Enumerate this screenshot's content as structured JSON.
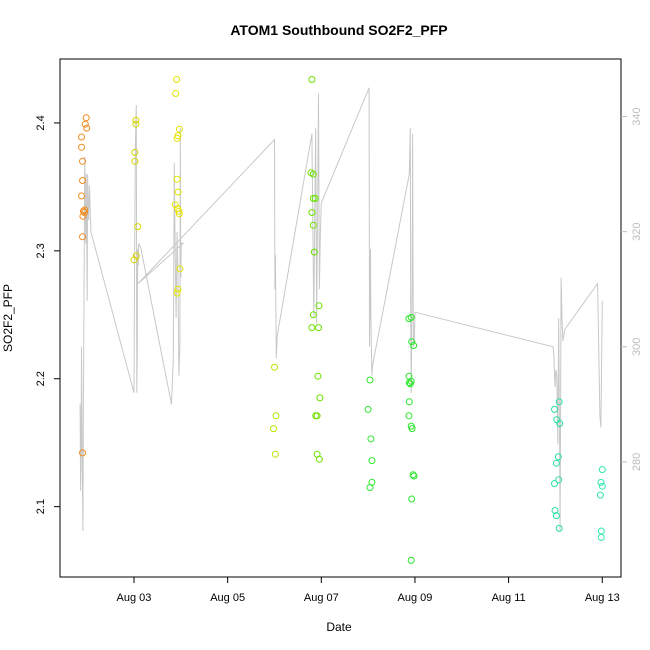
{
  "chart_data": {
    "type": "scatter",
    "title": "ATOM1 Southbound SO2F2_PFP",
    "xlabel": "Date",
    "ylabel": "SO2F2_PFP",
    "x_ticks": [
      "Aug 03",
      "Aug 05",
      "Aug 07",
      "Aug 09",
      "Aug 11",
      "Aug 13"
    ],
    "x_tick_days": [
      3,
      5,
      7,
      9,
      11,
      13
    ],
    "xlim": [
      1.42,
      13.4
    ],
    "y_ticks": [
      2.1,
      2.2,
      2.3,
      2.4
    ],
    "ylim": [
      2.045,
      2.45
    ],
    "y2_ticks": [
      280,
      300,
      320,
      340
    ],
    "y2lim": [
      260,
      350
    ],
    "grid": false,
    "series": [
      {
        "marker": "open-circle",
        "points": [
          [
            1.9,
            2.142,
            "#f28c1e"
          ],
          [
            1.9,
            2.311,
            "#f28c1e"
          ],
          [
            1.91,
            2.327,
            "#f28c1e"
          ],
          [
            1.92,
            2.331,
            "#f28c1e"
          ],
          [
            1.94,
            2.33,
            "#f28c1e"
          ],
          [
            1.95,
            2.332,
            "#f28c1e"
          ],
          [
            1.88,
            2.343,
            "#f28c1e"
          ],
          [
            1.9,
            2.355,
            "#f28c1e"
          ],
          [
            1.9,
            2.37,
            "#f28c1e"
          ],
          [
            1.88,
            2.381,
            "#f28c1e"
          ],
          [
            1.88,
            2.389,
            "#f28c1e"
          ],
          [
            1.96,
            2.399,
            "#f28c1e"
          ],
          [
            1.98,
            2.404,
            "#f28c1e"
          ],
          [
            1.99,
            2.396,
            "#f28c1e"
          ],
          [
            3.0,
            2.293,
            "#d6d600"
          ],
          [
            3.05,
            2.296,
            "#d6d600"
          ],
          [
            3.08,
            2.319,
            "#d6d600"
          ],
          [
            3.02,
            2.37,
            "#d6d600"
          ],
          [
            3.02,
            2.377,
            "#d6d600"
          ],
          [
            3.04,
            2.399,
            "#d6d600"
          ],
          [
            3.04,
            2.402,
            "#d6d600"
          ],
          [
            3.89,
            2.423,
            "#e4e400"
          ],
          [
            3.91,
            2.434,
            "#e4e400"
          ],
          [
            3.88,
            2.336,
            "#e4e400"
          ],
          [
            3.92,
            2.356,
            "#e4e400"
          ],
          [
            3.94,
            2.346,
            "#e4e400"
          ],
          [
            3.93,
            2.333,
            "#e4e400"
          ],
          [
            3.96,
            2.331,
            "#e4e400"
          ],
          [
            3.97,
            2.329,
            "#e4e400"
          ],
          [
            3.92,
            2.388,
            "#e4e400"
          ],
          [
            3.94,
            2.39,
            "#e4e400"
          ],
          [
            3.97,
            2.395,
            "#e4e400"
          ],
          [
            3.92,
            2.267,
            "#e4e400"
          ],
          [
            3.94,
            2.27,
            "#e4e400"
          ],
          [
            3.98,
            2.286,
            "#e4e400"
          ],
          [
            6.0,
            2.209,
            "#b4e600"
          ],
          [
            6.03,
            2.171,
            "#b4e600"
          ],
          [
            5.98,
            2.161,
            "#b4e600"
          ],
          [
            6.02,
            2.141,
            "#b4e600"
          ],
          [
            6.8,
            2.434,
            "#6be000"
          ],
          [
            6.78,
            2.361,
            "#6be000"
          ],
          [
            6.83,
            2.36,
            "#6be000"
          ],
          [
            6.8,
            2.33,
            "#6be000"
          ],
          [
            6.83,
            2.341,
            "#6be000"
          ],
          [
            6.87,
            2.341,
            "#6be000"
          ],
          [
            6.83,
            2.32,
            "#6be000"
          ],
          [
            6.85,
            2.299,
            "#6be000"
          ],
          [
            6.8,
            2.24,
            "#6be000"
          ],
          [
            6.83,
            2.25,
            "#6be000"
          ],
          [
            6.94,
            2.24,
            "#6be000"
          ],
          [
            6.95,
            2.257,
            "#6be000"
          ],
          [
            6.93,
            2.202,
            "#6be000"
          ],
          [
            6.88,
            2.171,
            "#6be000"
          ],
          [
            6.91,
            2.171,
            "#6be000"
          ],
          [
            6.97,
            2.185,
            "#6be000"
          ],
          [
            6.91,
            2.141,
            "#6be000"
          ],
          [
            6.96,
            2.137,
            "#6be000"
          ],
          [
            8.04,
            2.199,
            "#32e632"
          ],
          [
            8.0,
            2.176,
            "#32e632"
          ],
          [
            8.06,
            2.153,
            "#32e632"
          ],
          [
            8.08,
            2.136,
            "#32e632"
          ],
          [
            8.08,
            2.119,
            "#32e632"
          ],
          [
            8.04,
            2.115,
            "#32e632"
          ],
          [
            8.87,
            2.247,
            "#28e628"
          ],
          [
            8.92,
            2.248,
            "#28e628"
          ],
          [
            8.93,
            2.229,
            "#28e628"
          ],
          [
            8.97,
            2.226,
            "#28e628"
          ],
          [
            8.87,
            2.202,
            "#28e628"
          ],
          [
            8.88,
            2.197,
            "#28e628"
          ],
          [
            8.92,
            2.198,
            "#28e628"
          ],
          [
            8.9,
            2.196,
            "#28e628"
          ],
          [
            8.88,
            2.182,
            "#28e628"
          ],
          [
            8.87,
            2.171,
            "#28e628"
          ],
          [
            8.92,
            2.163,
            "#28e628"
          ],
          [
            8.94,
            2.161,
            "#28e628"
          ],
          [
            8.96,
            2.125,
            "#28e628"
          ],
          [
            8.98,
            2.124,
            "#28e628"
          ],
          [
            8.93,
            2.106,
            "#28e628"
          ],
          [
            8.92,
            2.058,
            "#28e628"
          ],
          [
            11.98,
            2.176,
            "#28e0a0"
          ],
          [
            12.08,
            2.182,
            "#28e0a0"
          ],
          [
            12.03,
            2.168,
            "#28e0a0"
          ],
          [
            12.09,
            2.165,
            "#28e0a0"
          ],
          [
            12.02,
            2.134,
            "#28e0a0"
          ],
          [
            12.06,
            2.139,
            "#28e0a0"
          ],
          [
            12.07,
            2.121,
            "#28e0a0"
          ],
          [
            11.98,
            2.118,
            "#28e0a0"
          ],
          [
            11.99,
            2.097,
            "#28e0a0"
          ],
          [
            12.02,
            2.093,
            "#28e0a0"
          ],
          [
            12.08,
            2.083,
            "#28e0a0"
          ],
          [
            13.0,
            2.129,
            "#30e8b0"
          ],
          [
            12.97,
            2.119,
            "#30e8b0"
          ],
          [
            13.0,
            2.116,
            "#30e8b0"
          ],
          [
            12.96,
            2.109,
            "#30e8b0"
          ],
          [
            12.98,
            2.081,
            "#30e8b0"
          ],
          [
            12.98,
            2.076,
            "#30e8b0"
          ]
        ]
      },
      {
        "axis": "right",
        "color": "#c8c8c8",
        "line_points": [
          [
            1.85,
            290
          ],
          [
            1.86,
            275
          ],
          [
            1.87,
            282
          ],
          [
            1.88,
            300
          ],
          [
            1.9,
            275
          ],
          [
            1.91,
            268
          ],
          [
            1.92,
            290
          ],
          [
            1.95,
            333
          ],
          [
            1.97,
            318
          ],
          [
            1.98,
            330
          ],
          [
            2.0,
            308
          ],
          [
            2.01,
            330
          ],
          [
            2.03,
            322
          ],
          [
            2.05,
            328
          ],
          [
            2.08,
            320
          ],
          [
            3.0,
            292
          ],
          [
            3.01,
            312
          ],
          [
            3.03,
            335
          ],
          [
            3.05,
            342
          ],
          [
            3.06,
            292
          ],
          [
            3.07,
            299
          ],
          [
            3.08,
            317
          ],
          [
            3.09,
            314
          ],
          [
            3.1,
            318
          ],
          [
            3.15,
            317
          ],
          [
            3.8,
            290
          ],
          [
            3.84,
            298
          ],
          [
            3.86,
            332
          ],
          [
            3.88,
            316
          ],
          [
            3.9,
            305
          ],
          [
            3.92,
            320
          ],
          [
            3.94,
            312
          ],
          [
            3.96,
            295
          ],
          [
            3.98,
            300
          ],
          [
            3.99,
            338
          ],
          [
            4.0,
            312
          ],
          [
            4.01,
            318
          ],
          [
            4.05,
            318
          ],
          [
            3.09,
            311
          ],
          [
            6.0,
            336
          ],
          [
            6.01,
            310
          ],
          [
            6.02,
            316
          ],
          [
            6.04,
            298
          ],
          [
            6.06,
            302
          ],
          [
            6.8,
            337
          ],
          [
            6.82,
            320
          ],
          [
            6.84,
            305
          ],
          [
            6.86,
            322
          ],
          [
            6.88,
            338
          ],
          [
            6.9,
            304
          ],
          [
            6.92,
            323
          ],
          [
            6.94,
            344
          ],
          [
            6.96,
            310
          ],
          [
            6.98,
            320
          ],
          [
            7.0,
            325
          ],
          [
            8.02,
            345
          ],
          [
            8.03,
            300
          ],
          [
            8.05,
            317
          ],
          [
            8.06,
            305
          ],
          [
            8.08,
            295
          ],
          [
            8.1,
            297
          ],
          [
            8.88,
            330
          ],
          [
            8.9,
            338
          ],
          [
            8.91,
            305
          ],
          [
            8.92,
            292
          ],
          [
            8.94,
            310
          ],
          [
            8.95,
            337
          ],
          [
            8.96,
            308
          ],
          [
            8.97,
            300
          ],
          [
            8.99,
            302
          ],
          [
            9.0,
            306
          ],
          [
            11.95,
            300
          ],
          [
            11.97,
            298
          ],
          [
            11.99,
            293
          ],
          [
            12.01,
            296
          ],
          [
            12.03,
            295
          ],
          [
            12.05,
            283
          ],
          [
            12.07,
            305
          ],
          [
            12.09,
            280
          ],
          [
            12.1,
            268
          ],
          [
            12.12,
            312
          ],
          [
            12.14,
            305
          ],
          [
            12.16,
            301
          ],
          [
            12.2,
            303
          ],
          [
            12.9,
            311
          ],
          [
            12.95,
            288
          ],
          [
            12.97,
            286
          ],
          [
            13.0,
            308
          ]
        ]
      }
    ]
  }
}
